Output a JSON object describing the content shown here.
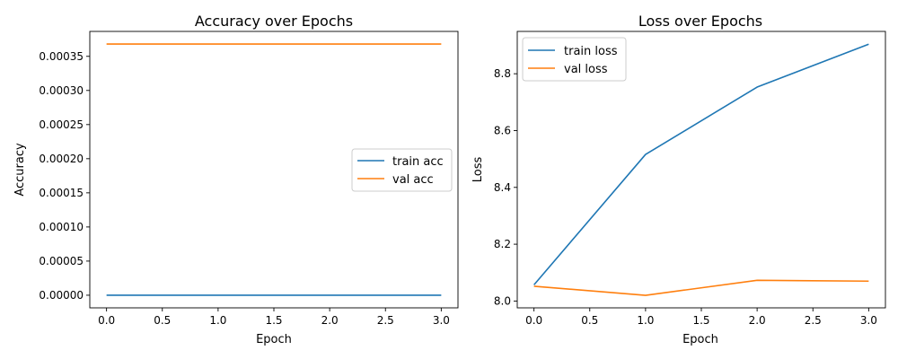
{
  "chart_data": [
    {
      "type": "line",
      "title": "Accuracy over Epochs",
      "xlabel": "Epoch",
      "ylabel": "Accuracy",
      "x": [
        0,
        1,
        2,
        3
      ],
      "xlim": [
        -0.15,
        3.15
      ],
      "ylim": [
        -1.85e-05,
        0.0003865
      ],
      "xticks": [
        "0.0",
        "0.5",
        "1.0",
        "1.5",
        "2.0",
        "2.5",
        "3.0"
      ],
      "xtick_values": [
        0,
        0.5,
        1,
        1.5,
        2,
        2.5,
        3
      ],
      "yticks": [
        "0.00000",
        "0.00005",
        "0.00010",
        "0.00015",
        "0.00020",
        "0.00025",
        "0.00030",
        "0.00035"
      ],
      "ytick_values": [
        0,
        5e-05,
        0.0001,
        0.00015,
        0.0002,
        0.00025,
        0.0003,
        0.00035
      ],
      "legend_position": "center-right",
      "grid": false,
      "series": [
        {
          "name": "train acc",
          "color": "#1f77b4",
          "values": [
            0,
            0,
            0,
            0
          ]
        },
        {
          "name": "val acc",
          "color": "#ff7f0e",
          "values": [
            0.000368,
            0.000368,
            0.000368,
            0.000368
          ]
        }
      ]
    },
    {
      "type": "line",
      "title": "Loss over Epochs",
      "xlabel": "Epoch",
      "ylabel": "Loss",
      "x": [
        0,
        1,
        2,
        3
      ],
      "xlim": [
        -0.15,
        3.15
      ],
      "ylim": [
        7.976,
        8.949
      ],
      "xticks": [
        "0.0",
        "0.5",
        "1.0",
        "1.5",
        "2.0",
        "2.5",
        "3.0"
      ],
      "xtick_values": [
        0,
        0.5,
        1,
        1.5,
        2,
        2.5,
        3
      ],
      "yticks": [
        "8.0",
        "8.2",
        "8.4",
        "8.6",
        "8.8"
      ],
      "ytick_values": [
        8.0,
        8.2,
        8.4,
        8.6,
        8.8
      ],
      "legend_position": "upper-left",
      "grid": false,
      "series": [
        {
          "name": "train loss",
          "color": "#1f77b4",
          "values": [
            8.057,
            8.516,
            8.753,
            8.904
          ]
        },
        {
          "name": "val loss",
          "color": "#ff7f0e",
          "values": [
            8.052,
            8.02,
            8.073,
            8.07
          ]
        }
      ]
    }
  ]
}
